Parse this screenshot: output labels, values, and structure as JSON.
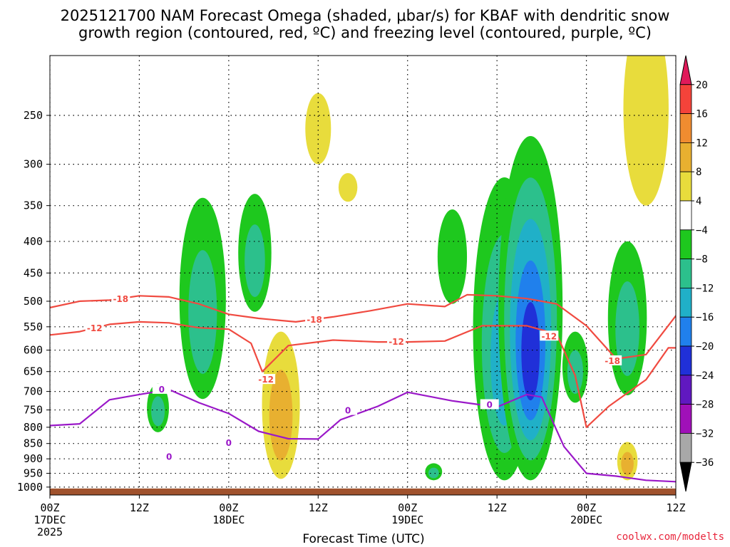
{
  "chart_data": {
    "type": "time-height",
    "title_line1": "2025121700 NAM Forecast Omega (shaded, μbar/s) for KBAF with dendritic snow",
    "title_line2": "growth region (contoured, red, ºC) and freezing level (contoured, purple, ºC)",
    "xlabel": "Forecast Time (UTC)",
    "credit": "coolwx.com/modelts",
    "x_ticks": [
      {
        "hour": 0,
        "l1": "00Z",
        "l2": "17DEC",
        "l3": "2025"
      },
      {
        "hour": 12,
        "l1": "12Z",
        "l2": "",
        "l3": ""
      },
      {
        "hour": 24,
        "l1": "00Z",
        "l2": "18DEC",
        "l3": ""
      },
      {
        "hour": 36,
        "l1": "12Z",
        "l2": "",
        "l3": ""
      },
      {
        "hour": 48,
        "l1": "00Z",
        "l2": "19DEC",
        "l3": ""
      },
      {
        "hour": 60,
        "l1": "12Z",
        "l2": "",
        "l3": ""
      },
      {
        "hour": 72,
        "l1": "00Z",
        "l2": "20DEC",
        "l3": ""
      },
      {
        "hour": 84,
        "l1": "12Z",
        "l2": "",
        "l3": ""
      }
    ],
    "x_range_hours": [
      0,
      84
    ],
    "y_range_hPa": [
      1030,
      200
    ],
    "y_ticks_hPa": [
      250,
      300,
      350,
      400,
      450,
      500,
      550,
      600,
      650,
      700,
      750,
      800,
      850,
      900,
      950,
      1000
    ],
    "colorbar": {
      "labels": [
        "20",
        "16",
        "12",
        "8",
        "4",
        "−4",
        "−8",
        "−12",
        "−16",
        "−20",
        "−24",
        "−28",
        "−32",
        "−36"
      ],
      "colors": [
        "#e01a5a",
        "#f4433a",
        "#f08c30",
        "#e8b030",
        "#e8dc3c",
        "#ffffff",
        "#1ec81e",
        "#2cc08c",
        "#20b0c8",
        "#2080ec",
        "#2030d8",
        "#6018c0",
        "#a010b8",
        "#a8a8a8",
        "#000000"
      ]
    },
    "contour_labels": {
      "dgz": [
        "-18",
        "-12"
      ],
      "freezing": [
        "0"
      ]
    },
    "omega_features": [
      {
        "hour": 20.5,
        "p_top": 340,
        "p_bot": 720,
        "value": -10
      },
      {
        "hour": 27.5,
        "p_top": 335,
        "p_bot": 520,
        "value": -8
      },
      {
        "hour": 14.5,
        "p_top": 680,
        "p_bot": 815,
        "value": -8
      },
      {
        "hour": 31.0,
        "p_top": 560,
        "p_bot": 970,
        "value": 8
      },
      {
        "hour": 36.0,
        "p_top": 230,
        "p_bot": 300,
        "value": 4
      },
      {
        "hour": 40.0,
        "p_top": 310,
        "p_bot": 345,
        "value": 4
      },
      {
        "hour": 51.5,
        "p_top": 915,
        "p_bot": 975,
        "value": -8
      },
      {
        "hour": 54.0,
        "p_top": 355,
        "p_bot": 505,
        "value": -6
      },
      {
        "hour": 61.0,
        "p_top": 315,
        "p_bot": 975,
        "value": -12
      },
      {
        "hour": 64.5,
        "p_top": 270,
        "p_bot": 975,
        "value": -22
      },
      {
        "hour": 70.5,
        "p_top": 560,
        "p_bot": 730,
        "value": -8
      },
      {
        "hour": 77.5,
        "p_top": 400,
        "p_bot": 710,
        "value": -10
      },
      {
        "hour": 80.0,
        "p_top": 170,
        "p_bot": 350,
        "value": 4
      },
      {
        "hour": 77.5,
        "p_top": 845,
        "p_bot": 975,
        "value": 10
      }
    ],
    "dgz_minus18_contour": [
      {
        "hour": 0,
        "p": 512
      },
      {
        "hour": 4,
        "p": 500
      },
      {
        "hour": 8,
        "p": 498
      },
      {
        "hour": 12,
        "p": 490
      },
      {
        "hour": 16,
        "p": 492
      },
      {
        "hour": 20,
        "p": 505
      },
      {
        "hour": 24,
        "p": 525
      },
      {
        "hour": 28,
        "p": 533
      },
      {
        "hour": 33,
        "p": 540
      },
      {
        "hour": 38,
        "p": 530
      },
      {
        "hour": 43,
        "p": 518
      },
      {
        "hour": 48,
        "p": 505
      },
      {
        "hour": 53,
        "p": 510
      },
      {
        "hour": 56,
        "p": 488
      },
      {
        "hour": 60,
        "p": 490
      },
      {
        "hour": 64,
        "p": 495
      },
      {
        "hour": 68,
        "p": 505
      },
      {
        "hour": 72,
        "p": 548
      },
      {
        "hour": 76,
        "p": 620
      },
      {
        "hour": 80,
        "p": 610
      },
      {
        "hour": 84,
        "p": 528
      }
    ],
    "dgz_minus12_contour": [
      {
        "hour": 0,
        "p": 567
      },
      {
        "hour": 4,
        "p": 560
      },
      {
        "hour": 8,
        "p": 545
      },
      {
        "hour": 12,
        "p": 540
      },
      {
        "hour": 16,
        "p": 542
      },
      {
        "hour": 20,
        "p": 552
      },
      {
        "hour": 24,
        "p": 555
      },
      {
        "hour": 27,
        "p": 585
      },
      {
        "hour": 28.5,
        "p": 650
      },
      {
        "hour": 32,
        "p": 590
      },
      {
        "hour": 38,
        "p": 578
      },
      {
        "hour": 44,
        "p": 582
      },
      {
        "hour": 48,
        "p": 582
      },
      {
        "hour": 53,
        "p": 580
      },
      {
        "hour": 58,
        "p": 548
      },
      {
        "hour": 64,
        "p": 548
      },
      {
        "hour": 68,
        "p": 565
      },
      {
        "hour": 70.5,
        "p": 660
      },
      {
        "hour": 72,
        "p": 800
      },
      {
        "hour": 75,
        "p": 740
      },
      {
        "hour": 80,
        "p": 670
      },
      {
        "hour": 83,
        "p": 595
      },
      {
        "hour": 84,
        "p": 595
      }
    ],
    "freezing_level_contour": [
      {
        "hour": 0,
        "p": 795
      },
      {
        "hour": 4,
        "p": 790
      },
      {
        "hour": 8,
        "p": 722
      },
      {
        "hour": 12,
        "p": 708
      },
      {
        "hour": 16,
        "p": 695
      },
      {
        "hour": 20,
        "p": 730
      },
      {
        "hour": 24,
        "p": 760
      },
      {
        "hour": 28,
        "p": 812
      },
      {
        "hour": 32,
        "p": 835
      },
      {
        "hour": 36,
        "p": 836
      },
      {
        "hour": 39,
        "p": 778
      },
      {
        "hour": 44,
        "p": 740
      },
      {
        "hour": 48,
        "p": 702
      },
      {
        "hour": 54,
        "p": 725
      },
      {
        "hour": 60,
        "p": 742
      },
      {
        "hour": 64,
        "p": 708
      },
      {
        "hour": 66,
        "p": 715
      },
      {
        "hour": 69,
        "p": 860
      },
      {
        "hour": 72,
        "p": 950
      },
      {
        "hour": 76,
        "p": 960
      },
      {
        "hour": 80,
        "p": 975
      },
      {
        "hour": 84,
        "p": 980
      }
    ],
    "terrain_color": "#a0522d",
    "dgz_color": "#f04a40",
    "freezing_color": "#9a18c8"
  }
}
